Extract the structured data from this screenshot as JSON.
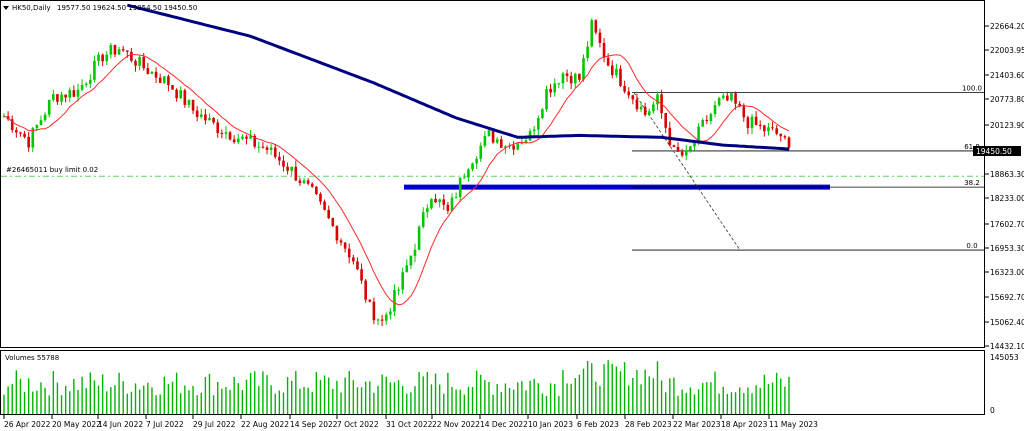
{
  "header": {
    "symbol": "HK50,Daily",
    "ohlc": "19577.50 19624.50 19354.50 19450.50"
  },
  "order_label": "#26465011 buy limit 0.02",
  "current_price": "19450.50",
  "volume_header": "Volumes 55788",
  "colors": {
    "bull": "#00c800",
    "bear": "#d80000",
    "ma_fast": "#ff2a2a",
    "ma_slow": "#000080",
    "support": "#0000c8",
    "buy_limit": "#5fd45f",
    "volume": "#00b400"
  },
  "chart_data": [
    {
      "type": "candlestick",
      "title": "HK50,Daily",
      "x_range": [
        "2022-04-26",
        "2023-05-19"
      ],
      "ylim": [
        14432.1,
        23295.1
      ],
      "y_ticks": [
        "22664.20",
        "22003.95",
        "21403.60",
        "20773.80",
        "20123.90",
        "19450.50",
        "18863.30",
        "18233.00",
        "17602.70",
        "16953.30",
        "16323.00",
        "15692.70",
        "15062.40",
        "14432.10"
      ],
      "x_ticks": [
        "26 Apr 2022",
        "20 May 2022",
        "14 Jun 2022",
        "7 Jul 2022",
        "29 Jul 2022",
        "22 Aug 2022",
        "14 Sep 2022",
        "7 Oct 2022",
        "31 Oct 2022",
        "22 Nov 2022",
        "14 Dec 2022",
        "10 Jan 2023",
        "6 Feb 2023",
        "28 Feb 2023",
        "22 Mar 2023",
        "18 Apr 2023",
        "11 May 2023"
      ],
      "series": [
        {
          "name": "Price"
        },
        {
          "name": "Fast MA"
        },
        {
          "name": "Slow MA"
        }
      ],
      "key_levels": [
        {
          "label": "",
          "value": 18520
        },
        {
          "label": "#26465011 buy limit 0.02",
          "value": 18800
        }
      ],
      "fibonacci": {
        "levels": [
          {
            "label": "100.0",
            "value": 20950
          },
          {
            "label": "61.8",
            "value": 19450
          },
          {
            "label": "38.2",
            "value": 18520
          },
          {
            "label": "0.0",
            "value": 16900
          }
        ]
      }
    },
    {
      "type": "bar",
      "title": "Volumes 55788",
      "ylim": [
        0,
        145053
      ],
      "y_ticks": [
        "145053",
        "0"
      ],
      "values": []
    }
  ]
}
